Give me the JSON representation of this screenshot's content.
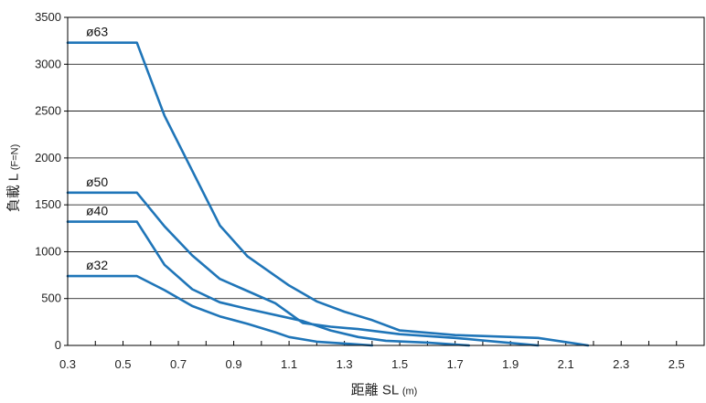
{
  "chart_data": {
    "type": "line",
    "title": "",
    "xlabel": "距離 SL",
    "xunit": "(m)",
    "ylabel": "負載 L",
    "yunit": "(F=N)",
    "xlim": [
      0.3,
      2.6
    ],
    "ylim": [
      0,
      3500
    ],
    "xticks": [
      "0.3",
      "0.5",
      "0.7",
      "0.9",
      "1.1",
      "1.3",
      "1.5",
      "1.7",
      "1.9",
      "2.1",
      "2.3",
      "2.5"
    ],
    "yticks": [
      "0",
      "500",
      "1000",
      "1500",
      "2000",
      "2500",
      "3000",
      "3500"
    ],
    "grid": "horizontal",
    "line_color": "#1f75b8",
    "series": [
      {
        "name": "ø63",
        "x": [
          0.3,
          0.55,
          0.65,
          0.85,
          0.95,
          1.1,
          1.2,
          1.3,
          1.4,
          1.5,
          1.7,
          1.8,
          2.0,
          2.18
        ],
        "y": [
          3230,
          3230,
          2450,
          1280,
          950,
          640,
          470,
          360,
          270,
          160,
          110,
          100,
          80,
          0
        ]
      },
      {
        "name": "ø50",
        "x": [
          0.3,
          0.55,
          0.65,
          0.75,
          0.85,
          0.95,
          1.05,
          1.15,
          1.25,
          1.35,
          1.5,
          1.7,
          1.85,
          2.0
        ],
        "y": [
          1630,
          1630,
          1270,
          960,
          710,
          580,
          450,
          240,
          200,
          175,
          120,
          80,
          40,
          0
        ]
      },
      {
        "name": "ø40",
        "x": [
          0.3,
          0.55,
          0.65,
          0.75,
          0.85,
          0.95,
          1.15,
          1.25,
          1.35,
          1.45,
          1.6,
          1.75
        ],
        "y": [
          1320,
          1320,
          860,
          600,
          460,
          390,
          260,
          160,
          90,
          50,
          30,
          0
        ]
      },
      {
        "name": "ø32",
        "x": [
          0.3,
          0.55,
          0.65,
          0.75,
          0.85,
          0.95,
          1.05,
          1.1,
          1.2,
          1.3,
          1.4
        ],
        "y": [
          740,
          740,
          590,
          420,
          310,
          230,
          140,
          90,
          40,
          20,
          0
        ]
      }
    ]
  }
}
